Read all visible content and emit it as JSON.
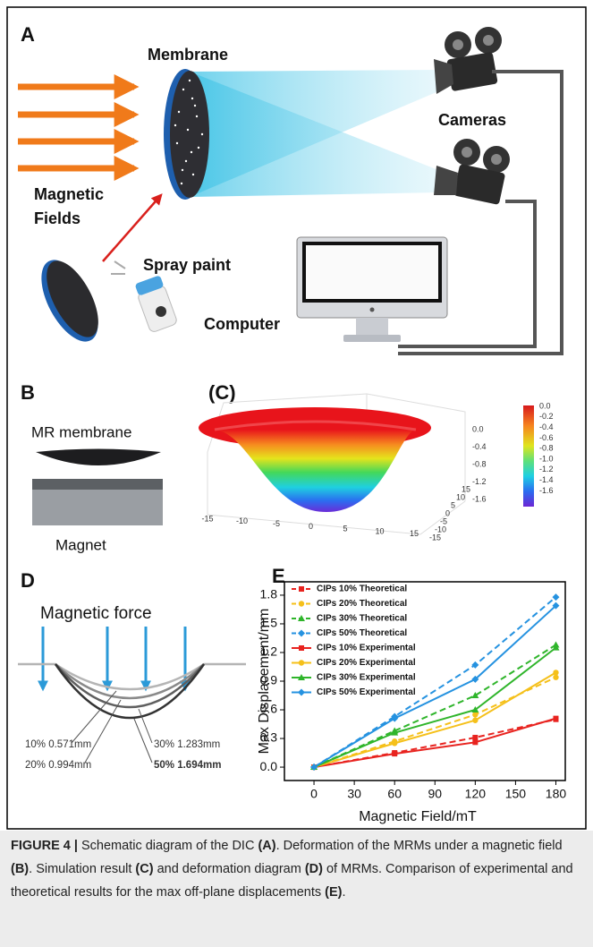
{
  "panel_a": {
    "label": "A",
    "membrane": "Membrane",
    "cameras": "Cameras",
    "magnetic_fields": [
      "Magnetic",
      "Fields"
    ],
    "spray_paint": "Spray paint",
    "computer": "Computer"
  },
  "panel_b": {
    "label": "B",
    "membrane": "MR membrane",
    "magnet": "Magnet"
  },
  "panel_c": {
    "label": "(C)",
    "colorbar_ticks": [
      "0.0",
      "-0.2",
      "-0.4",
      "-0.6",
      "-0.8",
      "-1.0",
      "-1.2",
      "-1.4",
      "-1.6"
    ],
    "z_ticks": [
      "0.0",
      "-0.4",
      "-0.8",
      "-1.2",
      "-1.6"
    ],
    "x_ticks": [
      "-15",
      "-10",
      "-5",
      "0",
      "5",
      "10",
      "15"
    ],
    "y_ticks": [
      "-15",
      "-10",
      "-5",
      "0",
      "5",
      "10",
      "15"
    ]
  },
  "panel_d": {
    "label": "D",
    "force": "Magnetic force",
    "annotations": [
      "10% 0.571mm",
      "20% 0.994mm",
      "30% 1.283mm",
      "50% 1.694mm"
    ]
  },
  "chart_data": {
    "type": "line",
    "panel_label": "E",
    "xlabel": "Magnetic Field/mT",
    "ylabel": "Max Displacement/mm",
    "x": [
      0,
      60,
      120,
      180
    ],
    "xlim": [
      -22,
      187
    ],
    "ylim": [
      -0.14,
      1.94
    ],
    "xticks": [
      0,
      30,
      60,
      90,
      120,
      150,
      180
    ],
    "yticks": [
      {
        "value": 0,
        "label": "0.0"
      },
      0.3,
      0.6,
      0.9,
      1.2,
      1.5,
      1.8
    ],
    "legend": "upper left",
    "series": [
      {
        "name": "CIPs 10% Theoretical",
        "color": "#e8231f",
        "dashed": true,
        "marker": "square",
        "values": [
          0,
          0.15,
          0.31,
          0.5
        ]
      },
      {
        "name": "CIPs 20% Theoretical",
        "color": "#f5c01a",
        "dashed": true,
        "marker": "circle",
        "values": [
          0,
          0.27,
          0.55,
          0.94
        ]
      },
      {
        "name": "CIPs 30% Theoretical",
        "color": "#2fb52b",
        "dashed": true,
        "marker": "triangle",
        "values": [
          0,
          0.38,
          0.75,
          1.28
        ]
      },
      {
        "name": "CIPs 50% Theoretical",
        "color": "#2592e0",
        "dashed": true,
        "marker": "diamond",
        "values": [
          0,
          0.53,
          1.07,
          1.78
        ]
      },
      {
        "name": "CIPs 10% Experimental",
        "color": "#e8231f",
        "dashed": false,
        "marker": "square",
        "values": [
          0,
          0.14,
          0.26,
          0.51
        ]
      },
      {
        "name": "CIPs 20% Experimental",
        "color": "#f5c01a",
        "dashed": false,
        "marker": "circle",
        "values": [
          0,
          0.25,
          0.49,
          0.99
        ]
      },
      {
        "name": "CIPs 30% Experimental",
        "color": "#2fb52b",
        "dashed": false,
        "marker": "triangle",
        "values": [
          0,
          0.36,
          0.6,
          1.25
        ]
      },
      {
        "name": "CIPs 50% Experimental",
        "color": "#2592e0",
        "dashed": false,
        "marker": "diamond",
        "values": [
          0,
          0.51,
          0.92,
          1.69
        ]
      }
    ]
  },
  "caption": {
    "label": "FIGURE 4 |",
    "segments": [
      {
        "text": "Schematic diagram of the DIC ",
        "bold": false
      },
      {
        "text": "(A)",
        "bold": true
      },
      {
        "text": ". Deformation of the MRMs under a magnetic field ",
        "bold": false
      },
      {
        "text": "(B)",
        "bold": true
      },
      {
        "text": ". Simulation result ",
        "bold": false
      },
      {
        "text": "(C)",
        "bold": true
      },
      {
        "text": " and deformation diagram ",
        "bold": false
      },
      {
        "text": "(D)",
        "bold": true
      },
      {
        "text": " of MRMs. Comparison of experimental and theoretical results for the max off-plane displacements ",
        "bold": false
      },
      {
        "text": "(E)",
        "bold": true
      },
      {
        "text": ".",
        "bold": false
      }
    ]
  }
}
